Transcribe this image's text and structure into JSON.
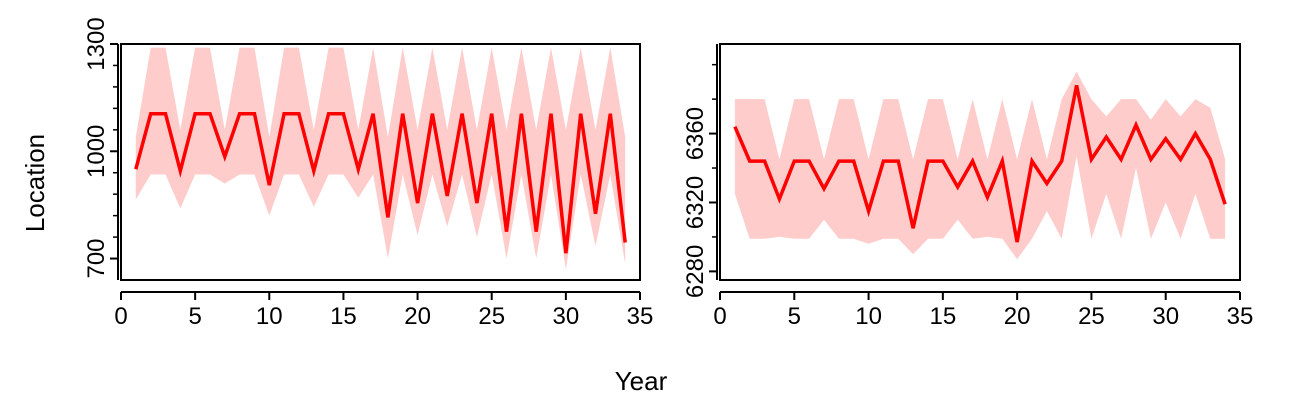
{
  "figure": {
    "xlabel": "Year",
    "ylabel": "Location"
  },
  "colors": {
    "line": "#ff0000",
    "band": "#ffcccc",
    "axis": "#000000"
  },
  "chart_data": [
    {
      "type": "line",
      "title": "",
      "xlabel": "Year",
      "ylabel": "Location",
      "xlim": [
        0,
        35
      ],
      "ylim": [
        640,
        1300
      ],
      "xticks": [
        0,
        5,
        10,
        15,
        20,
        25,
        30,
        35
      ],
      "xtick_labels": [
        "0",
        "5",
        "10",
        "15",
        "20",
        "25",
        "30",
        "35"
      ],
      "yticks": [
        700,
        1000,
        1300
      ],
      "ytick_labels": [
        "700",
        "1000",
        "1300"
      ],
      "yminor_ticks": [
        760,
        820,
        880,
        940,
        1060,
        1120,
        1180,
        1240
      ],
      "grid": false,
      "x": [
        1,
        2,
        3,
        4,
        5,
        6,
        7,
        8,
        9,
        10,
        11,
        12,
        13,
        14,
        15,
        16,
        17,
        18,
        19,
        20,
        21,
        22,
        23,
        24,
        25,
        26,
        27,
        28,
        29,
        30,
        31,
        32,
        33,
        34
      ],
      "series": [
        {
          "values": [
            950,
            1105,
            1105,
            945,
            1105,
            1105,
            985,
            1105,
            1105,
            905,
            1105,
            1105,
            945,
            1105,
            1105,
            950,
            1105,
            815,
            1105,
            855,
            1105,
            875,
            1105,
            855,
            1105,
            775,
            1105,
            775,
            1105,
            715,
            1105,
            825,
            1105,
            745
          ],
          "band_upper": [
            1040,
            1290,
            1290,
            1060,
            1290,
            1290,
            1060,
            1290,
            1290,
            1040,
            1290,
            1290,
            1060,
            1290,
            1290,
            1060,
            1290,
            1040,
            1290,
            1060,
            1290,
            1060,
            1290,
            1060,
            1290,
            1060,
            1290,
            1060,
            1290,
            1060,
            1290,
            1060,
            1290,
            1040
          ],
          "band_lower": [
            865,
            935,
            935,
            840,
            935,
            935,
            910,
            935,
            935,
            820,
            935,
            935,
            845,
            935,
            935,
            870,
            935,
            700,
            935,
            765,
            935,
            790,
            935,
            760,
            935,
            700,
            935,
            700,
            935,
            670,
            935,
            735,
            935,
            685
          ]
        }
      ]
    },
    {
      "type": "line",
      "title": "",
      "xlabel": "Year",
      "ylabel": "Location",
      "xlim": [
        0,
        35
      ],
      "ylim": [
        6275,
        6412
      ],
      "xticks": [
        0,
        5,
        10,
        15,
        20,
        25,
        30,
        35
      ],
      "xtick_labels": [
        "0",
        "5",
        "10",
        "15",
        "20",
        "25",
        "30",
        "35"
      ],
      "yticks": [
        6280,
        6320,
        6360
      ],
      "ytick_labels": [
        "6280",
        "6320",
        "6360"
      ],
      "yminor_ticks": [
        6300,
        6340,
        6380,
        6400
      ],
      "grid": false,
      "x": [
        1,
        2,
        3,
        4,
        5,
        6,
        7,
        8,
        9,
        10,
        11,
        12,
        13,
        14,
        15,
        16,
        17,
        18,
        19,
        20,
        21,
        22,
        23,
        24,
        25,
        26,
        27,
        28,
        29,
        30,
        31,
        32,
        33,
        34
      ],
      "series": [
        {
          "values": [
            6364,
            6344,
            6344,
            6322,
            6344,
            6344,
            6328,
            6344,
            6344,
            6315,
            6344,
            6344,
            6305,
            6344,
            6344,
            6329,
            6344,
            6323,
            6344,
            6297,
            6344,
            6331,
            6344,
            6388,
            6345,
            6358,
            6345,
            6365,
            6345,
            6357,
            6345,
            6360,
            6345,
            6319
          ],
          "band_upper": [
            6380,
            6380,
            6380,
            6345,
            6380,
            6380,
            6345,
            6380,
            6380,
            6345,
            6380,
            6380,
            6345,
            6380,
            6380,
            6345,
            6380,
            6345,
            6380,
            6345,
            6380,
            6345,
            6380,
            6396,
            6380,
            6370,
            6380,
            6380,
            6368,
            6380,
            6370,
            6380,
            6375,
            6345
          ],
          "band_lower": [
            6325,
            6299,
            6299,
            6300,
            6299,
            6299,
            6310,
            6299,
            6299,
            6296,
            6299,
            6299,
            6290,
            6299,
            6299,
            6310,
            6299,
            6300,
            6299,
            6287,
            6299,
            6315,
            6299,
            6347,
            6299,
            6325,
            6299,
            6340,
            6299,
            6320,
            6299,
            6325,
            6299,
            6299
          ]
        }
      ]
    }
  ]
}
